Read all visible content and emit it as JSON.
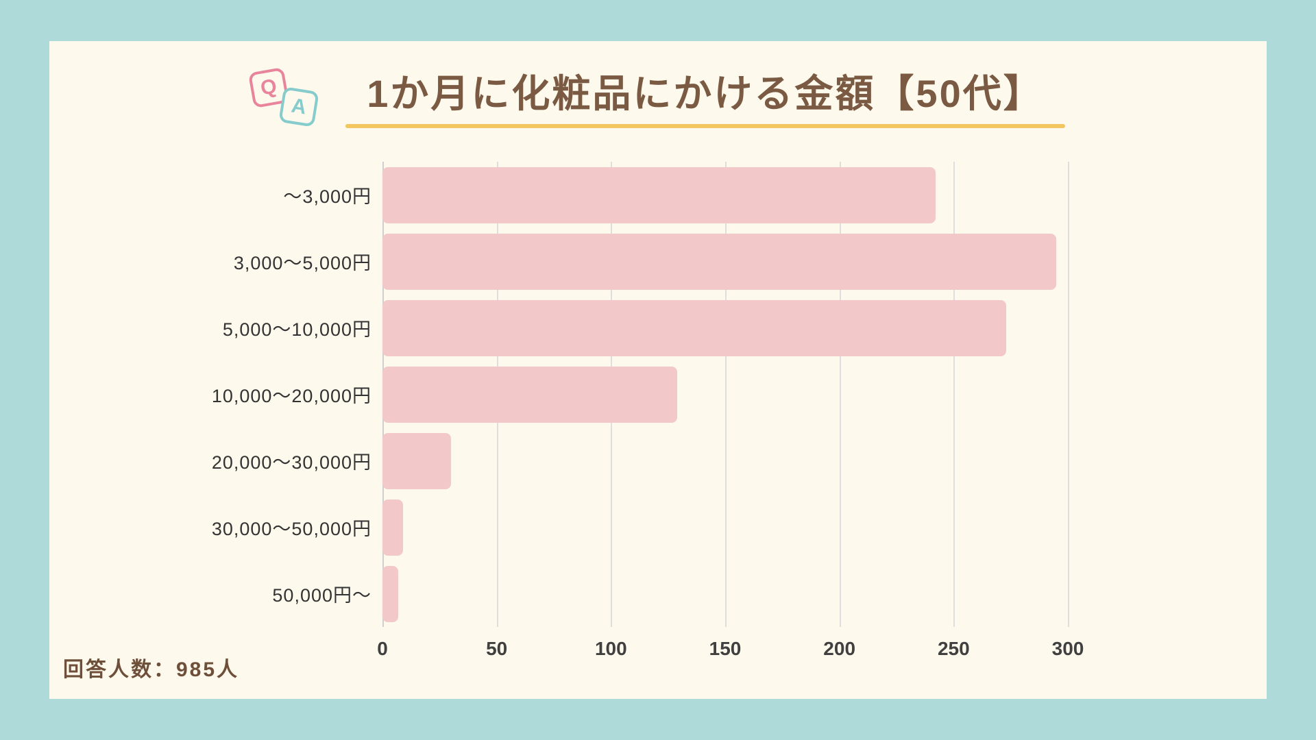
{
  "page": {
    "background_color": "#aedada",
    "card_color": "#fdf9ec"
  },
  "header": {
    "title": "1か月に化粧品にかける金額【50代】",
    "title_color": "#7a5a43",
    "underline_color": "#f2c75f",
    "qa_icon": {
      "q_label": "Q",
      "a_label": "A",
      "q_color": "#e8849c",
      "a_color": "#86cccc"
    }
  },
  "chart_data": {
    "type": "bar",
    "orientation": "horizontal",
    "title": "1か月に化粧品にかける金額【50代】",
    "categories": [
      "～3,000円",
      "3,000～5,000円",
      "5,000～10,000円",
      "10,000～20,000円",
      "20,000～30,000円",
      "30,000～50,000円",
      "50,000円～"
    ],
    "values": [
      242,
      295,
      273,
      129,
      30,
      9,
      7
    ],
    "xticks": [
      0,
      50,
      100,
      150,
      200,
      250,
      300
    ],
    "xlim": [
      0,
      330
    ],
    "xlabel": "",
    "ylabel": "",
    "grid": true,
    "gridline_color": "#dedede",
    "bar_color": "#f2c8c8",
    "legend": false
  },
  "footer": {
    "respondents_label": "回答人数：985人"
  }
}
